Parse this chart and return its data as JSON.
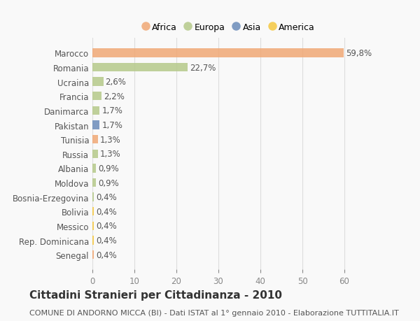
{
  "categories": [
    "Marocco",
    "Romania",
    "Ucraina",
    "Francia",
    "Danimarca",
    "Pakistan",
    "Tunisia",
    "Russia",
    "Albania",
    "Moldova",
    "Bosnia-Erzegovina",
    "Bolivia",
    "Messico",
    "Rep. Dominicana",
    "Senegal"
  ],
  "values": [
    59.8,
    22.7,
    2.6,
    2.2,
    1.7,
    1.7,
    1.3,
    1.3,
    0.9,
    0.9,
    0.4,
    0.4,
    0.4,
    0.4,
    0.4
  ],
  "labels": [
    "59,8%",
    "22,7%",
    "2,6%",
    "2,2%",
    "1,7%",
    "1,7%",
    "1,3%",
    "1,3%",
    "0,9%",
    "0,9%",
    "0,4%",
    "0,4%",
    "0,4%",
    "0,4%",
    "0,4%"
  ],
  "colors": [
    "#f0a875",
    "#b5c98a",
    "#b5c98a",
    "#b5c98a",
    "#b5c98a",
    "#6b8cba",
    "#f0a875",
    "#b5c98a",
    "#b5c98a",
    "#b5c98a",
    "#b5c98a",
    "#f5c842",
    "#f5c842",
    "#f5c842",
    "#f0a875"
  ],
  "legend_labels": [
    "Africa",
    "Europa",
    "Asia",
    "America"
  ],
  "legend_colors": [
    "#f0a875",
    "#b5c98a",
    "#6b8cba",
    "#f5c842"
  ],
  "xlim": [
    0,
    65
  ],
  "xticks": [
    0,
    10,
    20,
    30,
    40,
    50,
    60
  ],
  "title": "Cittadini Stranieri per Cittadinanza - 2010",
  "subtitle": "COMUNE DI ANDORNO MICCA (BI) - Dati ISTAT al 1° gennaio 2010 - Elaborazione TUTTITALIA.IT",
  "background_color": "#f9f9f9",
  "bar_height": 0.6,
  "grid_color": "#dddddd",
  "label_fontsize": 8.5,
  "tick_fontsize": 8.5,
  "title_fontsize": 11,
  "subtitle_fontsize": 8
}
